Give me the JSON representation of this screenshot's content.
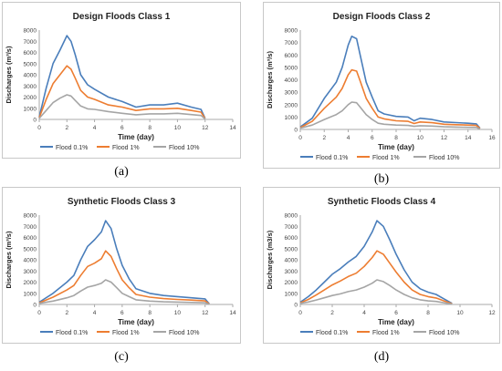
{
  "figure": {
    "captions": [
      "(a)",
      "(b)",
      "(c)",
      "(d)"
    ]
  },
  "chart_data": [
    {
      "type": "line",
      "title": "Design Floods  Class 1",
      "xlabel": "Time (day)",
      "ylabel": "Discharges (m³/s)",
      "xlim": [
        0,
        14
      ],
      "ylim": [
        0,
        8000
      ],
      "xticks": [
        0,
        2,
        4,
        6,
        8,
        10,
        12,
        14
      ],
      "yticks": [
        0,
        1000,
        2000,
        3000,
        4000,
        5000,
        6000,
        7000,
        8000
      ],
      "grid": false,
      "legend_position": "bottom",
      "series": [
        {
          "name": "Flood 0.1%",
          "color": "#4A7EBB",
          "x": [
            0,
            0.5,
            1,
            1.5,
            2,
            2.3,
            2.6,
            3,
            3.5,
            4,
            5,
            6,
            7,
            8,
            9,
            10,
            11,
            11.7,
            12
          ],
          "y": [
            200,
            2800,
            5000,
            6200,
            7500,
            7000,
            5800,
            4000,
            3100,
            2700,
            2000,
            1600,
            1100,
            1300,
            1300,
            1450,
            1100,
            900,
            100
          ]
        },
        {
          "name": "Flood 1%",
          "color": "#ED7D31",
          "x": [
            0,
            0.5,
            1,
            1.5,
            2,
            2.3,
            2.6,
            3,
            3.5,
            4,
            5,
            6,
            7,
            8,
            9,
            10,
            11,
            11.7,
            12
          ],
          "y": [
            150,
            1800,
            3200,
            4000,
            4800,
            4500,
            3700,
            2600,
            2000,
            1800,
            1300,
            1100,
            800,
            950,
            950,
            1000,
            800,
            650,
            80
          ]
        },
        {
          "name": "Flood 10%",
          "color": "#A5A5A5",
          "x": [
            0,
            0.5,
            1,
            1.5,
            2,
            2.3,
            2.6,
            3,
            3.5,
            4,
            5,
            6,
            7,
            8,
            9,
            10,
            11,
            11.7,
            12
          ],
          "y": [
            100,
            800,
            1500,
            1900,
            2200,
            2100,
            1700,
            1200,
            950,
            900,
            700,
            550,
            420,
            500,
            500,
            550,
            430,
            350,
            40
          ]
        }
      ]
    },
    {
      "type": "line",
      "title": "Design Floods  Class 2",
      "xlabel": "Time (day)",
      "ylabel": "Discharges (m³/s)",
      "xlim": [
        0,
        16
      ],
      "ylim": [
        0,
        8000
      ],
      "xticks": [
        0,
        2,
        4,
        6,
        8,
        10,
        12,
        14,
        16
      ],
      "yticks": [
        0,
        1000,
        2000,
        3000,
        4000,
        5000,
        6000,
        7000,
        8000
      ],
      "grid": false,
      "legend_position": "bottom",
      "series": [
        {
          "name": "Flood 0.1%",
          "color": "#4A7EBB",
          "x": [
            0,
            1,
            2,
            3,
            3.5,
            4,
            4.3,
            4.7,
            5,
            5.5,
            6,
            6.5,
            7,
            8,
            9,
            9.5,
            10,
            11,
            12,
            13,
            14,
            14.7,
            15
          ],
          "y": [
            200,
            900,
            2500,
            3800,
            5000,
            6800,
            7500,
            7300,
            6000,
            3800,
            2600,
            1500,
            1250,
            1050,
            1000,
            700,
            900,
            800,
            600,
            550,
            500,
            450,
            100
          ]
        },
        {
          "name": "Flood 1%",
          "color": "#ED7D31",
          "x": [
            0,
            1,
            2,
            3,
            3.5,
            4,
            4.3,
            4.7,
            5,
            5.5,
            6,
            6.5,
            7,
            8,
            9,
            9.5,
            10,
            11,
            12,
            13,
            14,
            14.7,
            15
          ],
          "y": [
            150,
            650,
            1700,
            2600,
            3300,
            4400,
            4800,
            4700,
            3900,
            2500,
            1700,
            1000,
            850,
            700,
            650,
            480,
            600,
            540,
            420,
            380,
            350,
            320,
            80
          ]
        },
        {
          "name": "Flood 10%",
          "color": "#A5A5A5",
          "x": [
            0,
            1,
            2,
            3,
            3.5,
            4,
            4.3,
            4.7,
            5,
            5.5,
            6,
            6.5,
            7,
            8,
            9,
            9.5,
            10,
            11,
            12,
            13,
            14,
            14.7,
            15
          ],
          "y": [
            100,
            350,
            800,
            1200,
            1500,
            2000,
            2200,
            2150,
            1800,
            1200,
            800,
            500,
            420,
            350,
            320,
            250,
            300,
            270,
            210,
            190,
            170,
            160,
            40
          ]
        }
      ]
    },
    {
      "type": "line",
      "title": "Synthetic Floods  Class 3",
      "xlabel": "Time (day)",
      "ylabel": "Discharges (m³/s)",
      "xlim": [
        0,
        14
      ],
      "ylim": [
        0,
        8000
      ],
      "xticks": [
        0,
        2,
        4,
        6,
        8,
        10,
        12,
        14
      ],
      "yticks": [
        0,
        1000,
        2000,
        3000,
        4000,
        5000,
        6000,
        7000,
        8000
      ],
      "grid": false,
      "legend_position": "bottom",
      "series": [
        {
          "name": "Flood 0.1%",
          "color": "#4A7EBB",
          "x": [
            0,
            1,
            2,
            2.5,
            3,
            3.5,
            4,
            4.5,
            4.8,
            5.2,
            5.6,
            6,
            6.5,
            7,
            8,
            9,
            10,
            11,
            12,
            12.3
          ],
          "y": [
            200,
            1000,
            2000,
            2600,
            4000,
            5200,
            5800,
            6500,
            7500,
            6800,
            5000,
            3500,
            2300,
            1400,
            1000,
            800,
            700,
            600,
            500,
            50
          ]
        },
        {
          "name": "Flood 1%",
          "color": "#ED7D31",
          "x": [
            0,
            1,
            2,
            2.5,
            3,
            3.5,
            4,
            4.5,
            4.8,
            5.2,
            5.6,
            6,
            6.5,
            7,
            8,
            9,
            10,
            11,
            12,
            12.3
          ],
          "y": [
            150,
            650,
            1300,
            1700,
            2600,
            3400,
            3700,
            4100,
            4800,
            4300,
            3200,
            2200,
            1500,
            900,
            650,
            520,
            450,
            390,
            320,
            40
          ]
        },
        {
          "name": "Flood 10%",
          "color": "#A5A5A5",
          "x": [
            0,
            1,
            2,
            2.5,
            3,
            3.5,
            4,
            4.5,
            4.8,
            5.2,
            5.6,
            6,
            6.5,
            7,
            8,
            9,
            10,
            11,
            12,
            12.3
          ],
          "y": [
            100,
            300,
            600,
            800,
            1200,
            1550,
            1700,
            1900,
            2200,
            2000,
            1500,
            1000,
            700,
            420,
            300,
            240,
            210,
            180,
            150,
            20
          ]
        }
      ]
    },
    {
      "type": "line",
      "title": "Synthetic Floods  Class 4",
      "xlabel": "Time (day)",
      "ylabel": "Discharges (m3/s)",
      "xlim": [
        0,
        12
      ],
      "ylim": [
        0,
        8000
      ],
      "xticks": [
        0,
        2,
        4,
        6,
        8,
        10,
        12
      ],
      "yticks": [
        0,
        1000,
        2000,
        3000,
        4000,
        5000,
        6000,
        7000,
        8000
      ],
      "grid": false,
      "legend_position": "bottom",
      "series": [
        {
          "name": "Flood 0.1%",
          "color": "#4A7EBB",
          "x": [
            0,
            0.5,
            1,
            1.5,
            2,
            2.5,
            3,
            3.5,
            4,
            4.5,
            4.8,
            5.2,
            5.6,
            6,
            6.5,
            7,
            7.5,
            8,
            8.5,
            9,
            9.5
          ],
          "y": [
            200,
            700,
            1300,
            2000,
            2700,
            3200,
            3800,
            4300,
            5200,
            6500,
            7500,
            7000,
            5800,
            4500,
            3100,
            2000,
            1400,
            1100,
            900,
            500,
            100
          ]
        },
        {
          "name": "Flood 1%",
          "color": "#ED7D31",
          "x": [
            0,
            0.5,
            1,
            1.5,
            2,
            2.5,
            3,
            3.5,
            4,
            4.5,
            4.8,
            5.2,
            5.6,
            6,
            6.5,
            7,
            7.5,
            8,
            8.5,
            9,
            9.5
          ],
          "y": [
            150,
            450,
            850,
            1300,
            1750,
            2100,
            2500,
            2800,
            3400,
            4200,
            4800,
            4500,
            3700,
            2900,
            2000,
            1300,
            900,
            700,
            580,
            320,
            70
          ]
        },
        {
          "name": "Flood 10%",
          "color": "#A5A5A5",
          "x": [
            0,
            0.5,
            1,
            1.5,
            2,
            2.5,
            3,
            3.5,
            4,
            4.5,
            4.8,
            5.2,
            5.6,
            6,
            6.5,
            7,
            7.5,
            8,
            8.5,
            9,
            9.5
          ],
          "y": [
            100,
            220,
            400,
            600,
            800,
            950,
            1150,
            1300,
            1550,
            1900,
            2200,
            2050,
            1700,
            1300,
            900,
            600,
            420,
            320,
            270,
            150,
            30
          ]
        }
      ]
    }
  ]
}
